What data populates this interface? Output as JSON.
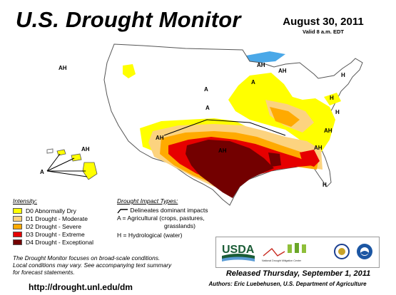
{
  "header": {
    "title": "U.S. Drought Monitor",
    "date": "August 30, 2011",
    "valid": "Valid 8 a.m. EDT"
  },
  "legend": {
    "heading": "Intensity:",
    "items": [
      {
        "label": "D0 Abnormally Dry",
        "color": "#ffff00"
      },
      {
        "label": "D1 Drought - Moderate",
        "color": "#fcd37f"
      },
      {
        "label": "D2 Drought - Severe",
        "color": "#ffaa00"
      },
      {
        "label": "D3 Drought - Extreme",
        "color": "#e60000"
      },
      {
        "label": "D4 Drought - Exceptional",
        "color": "#730000"
      }
    ]
  },
  "impacts": {
    "heading": "Drought Impact Types:",
    "delineate": "Delineates dominant impacts",
    "agricultural_1": "A = Agricultural (crops, pastures,",
    "agricultural_2": "grasslands)",
    "hydrological": "H = Hydrological (water)"
  },
  "map_labels": {
    "ah": "AH",
    "a": "A",
    "h": "H"
  },
  "colors": {
    "water": "#4aa8e8",
    "state_border": "#777777",
    "impact_line": "#000000"
  },
  "logos": {
    "usda": "USDA",
    "ndmc": "National Drought Mitigation Center",
    "doc_icon": "department-of-commerce-seal-icon",
    "noaa_icon": "noaa-logo-icon"
  },
  "footnote": {
    "line1": "The Drought Monitor focuses on broad-scale conditions.",
    "line2": "Local conditions may vary. See accompanying text summary",
    "line3": "for forecast statements."
  },
  "url": "http://drought.unl.edu/dm",
  "released": "Released Thursday, September 1, 2011",
  "authors": "Authors: Eric Luebehusen, U.S. Department of Agriculture"
}
